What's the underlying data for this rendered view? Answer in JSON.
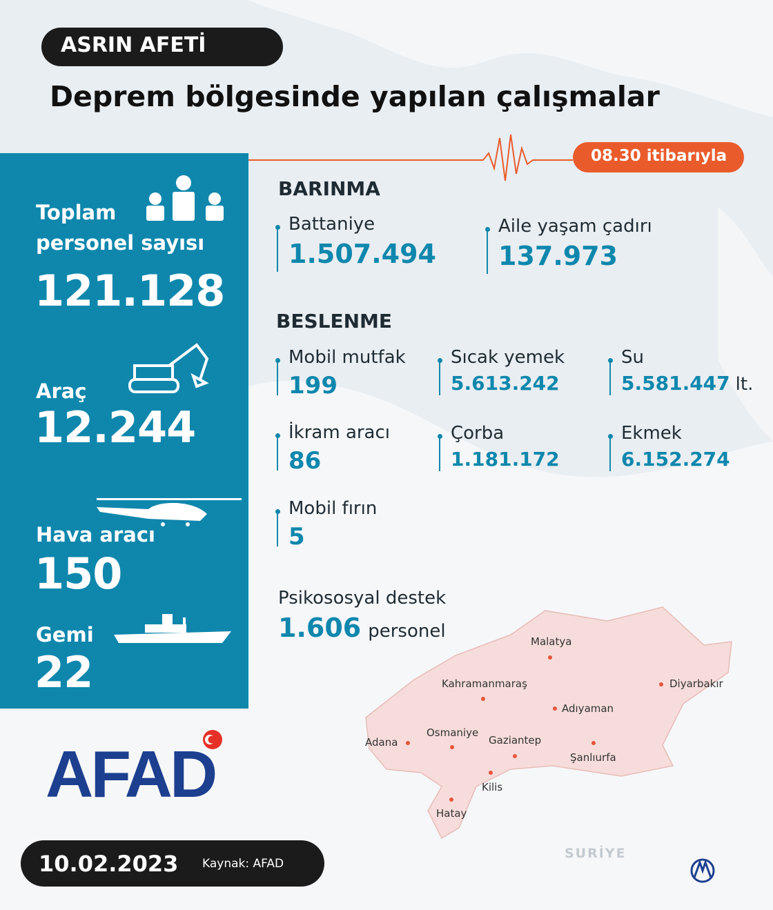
{
  "header": {
    "tag": "ASRIN AFETİ",
    "title": "Deprem bölgesinde yapılan çalışmalar",
    "as_of": "08.30 itibarıyla"
  },
  "summary": [
    {
      "label": "Toplam personel sayısı",
      "value": "121.128"
    },
    {
      "label": "Araç",
      "value": "12.244"
    },
    {
      "label": "Hava aracı",
      "value": "150"
    },
    {
      "label": "Gemi",
      "value": "22"
    }
  ],
  "shelter": {
    "title": "BARINMA",
    "items": [
      {
        "label": "Battaniye",
        "value": "1.507.494"
      },
      {
        "label": "Aile yaşam çadırı",
        "value": "137.973"
      }
    ]
  },
  "food": {
    "title": "BESLENME",
    "items": [
      {
        "label": "Mobil mutfak",
        "value": "199"
      },
      {
        "label": "Sıcak yemek",
        "value": "5.613.242"
      },
      {
        "label": "Su",
        "value": "5.581.447",
        "unit": "lt."
      },
      {
        "label": "İkram aracı",
        "value": "86"
      },
      {
        "label": "Çorba",
        "value": "1.181.172"
      },
      {
        "label": "Ekmek",
        "value": "6.152.274"
      },
      {
        "label": "Mobil fırın",
        "value": "5"
      }
    ]
  },
  "psychosocial": {
    "label": "Psikososyal destek",
    "value": "1.606",
    "unit": "personel"
  },
  "map": {
    "cities": [
      "Malatya",
      "Kahramanmaraş",
      "Diyarbakır",
      "Adıyaman",
      "Adana",
      "Osmaniye",
      "Gaziantep",
      "Şanlıurfa",
      "Kilis",
      "Hatay"
    ],
    "country": "SURİYE"
  },
  "footer": {
    "date": "10.02.2023",
    "source": "Kaynak: AFAD",
    "logo": "AFAD"
  }
}
